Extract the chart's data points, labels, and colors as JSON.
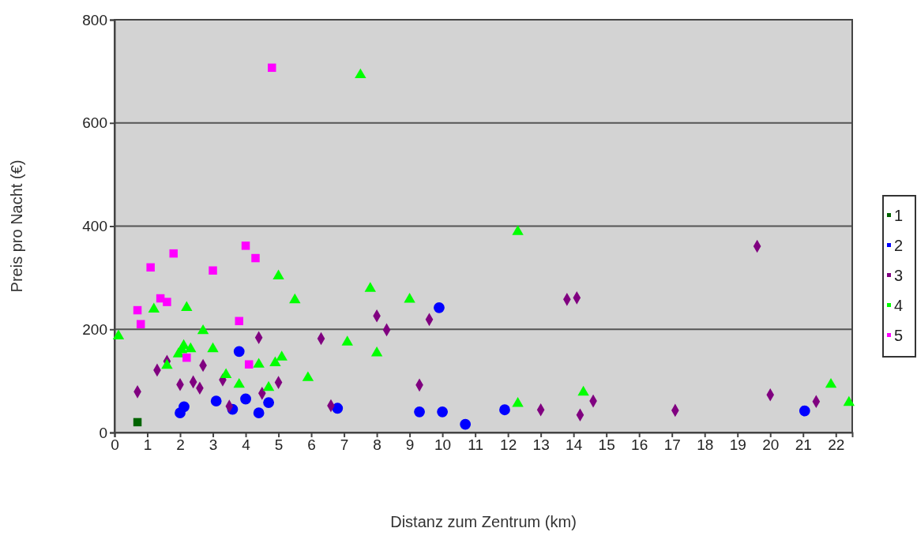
{
  "chart_data": {
    "type": "scatter",
    "xlabel": "Distanz zum Zentrum (km)",
    "ylabel": "Preis pro Nacht (€)",
    "xlim": [
      0,
      22.5
    ],
    "xticks": [
      0,
      1,
      2,
      3,
      4,
      5,
      6,
      7,
      8,
      9,
      10,
      11,
      12,
      13,
      14,
      15,
      16,
      17,
      18,
      19,
      20,
      21,
      22
    ],
    "ylim": [
      0,
      800
    ],
    "yticks": [
      0,
      200,
      400,
      600,
      800
    ],
    "grid": "y",
    "legend": "right",
    "series": [
      {
        "name": "1",
        "color": "#006400",
        "marker": "square",
        "x": [
          0.7
        ],
        "values": [
          20
        ]
      },
      {
        "name": "2",
        "color": "#0000ff",
        "marker": "circle",
        "x": [
          3.8,
          3.1,
          4.0,
          4.7,
          2.12,
          2.0,
          3.6,
          4.4,
          9.9,
          6.8,
          9.3,
          10.0,
          10.7,
          11.9,
          21.05
        ],
        "values": [
          157,
          61,
          65,
          58,
          50,
          38,
          45,
          38,
          242,
          47,
          40,
          40,
          16,
          44,
          42
        ]
      },
      {
        "name": "3",
        "color": "#800080",
        "marker": "diamond",
        "x": [
          4.4,
          1.6,
          1.3,
          2.7,
          0.7,
          2.0,
          2.4,
          2.6,
          3.3,
          5.0,
          4.5,
          3.5,
          8.0,
          9.6,
          8.3,
          6.3,
          9.3,
          6.6,
          13.8,
          14.1,
          13.0,
          14.6,
          14.2,
          19.6,
          20.0,
          17.1,
          21.4
        ],
        "values": [
          184,
          138,
          121,
          130,
          79,
          93,
          98,
          86,
          102,
          97,
          76,
          51,
          226,
          219,
          199,
          182,
          92,
          52,
          258,
          261,
          44,
          61,
          34,
          361,
          73,
          43,
          60
        ]
      },
      {
        "name": "4",
        "color": "#00ff00",
        "marker": "triangle",
        "x": [
          5.0,
          5.5,
          1.2,
          2.2,
          0.12,
          2.7,
          2.11,
          2.32,
          1.95,
          2.05,
          3.0,
          1.6,
          4.4,
          4.9,
          5.1,
          3.4,
          3.8,
          4.7,
          7.5,
          7.8,
          9.0,
          7.1,
          8.0,
          5.9,
          12.3,
          12.3,
          14.3,
          21.85,
          22.4
        ],
        "values": [
          303,
          257,
          239,
          242,
          187,
          197,
          168,
          162,
          152,
          160,
          162,
          130,
          132,
          135,
          146,
          112,
          93,
          87,
          693,
          279,
          258,
          175,
          154,
          106,
          389,
          56,
          78,
          93,
          58
        ]
      },
      {
        "name": "5",
        "color": "#ff00ff",
        "marker": "square",
        "x": [
          4.0,
          4.3,
          1.8,
          1.1,
          3.0,
          1.4,
          1.6,
          0.7,
          0.8,
          3.8,
          2.2,
          4.1,
          4.8
        ],
        "values": [
          362,
          338,
          347,
          320,
          314,
          260,
          253,
          237,
          210,
          216,
          145,
          132,
          707
        ]
      }
    ]
  }
}
